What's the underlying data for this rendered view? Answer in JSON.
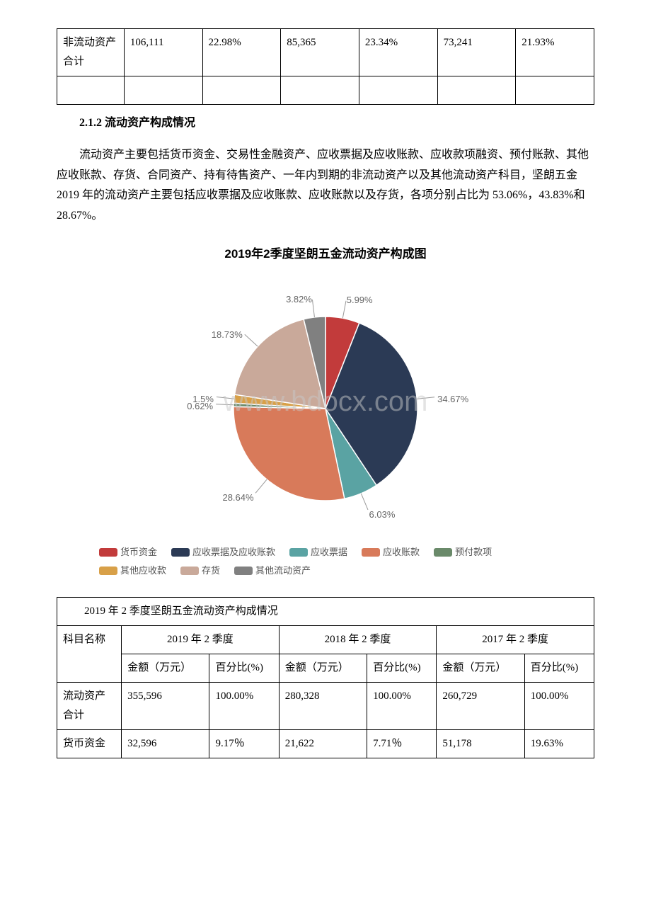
{
  "top_table": {
    "row": {
      "label": "非流动资产合计",
      "c1": "106,111",
      "c2": "22.98%",
      "c3": "85,365",
      "c4": "23.34%",
      "c5": "73,241",
      "c6": "21.93%"
    }
  },
  "section": {
    "heading": "2.1.2 流动资产构成情况",
    "para": "流动资产主要包括货币资金、交易性金融资产、应收票据及应收账款、应收款项融资、预付账款、其他应收账款、存货、合同资产、持有待售资产、一年内到期的非流动资产以及其他流动资产科目，坚朗五金 2019 年的流动资产主要包括应收票据及应收账款、应收账款以及存货，各项分别占比为 53.06%，43.83%和 28.67%。"
  },
  "chart": {
    "title": "2019年2季度坚朗五金流动资产构成图",
    "title_fontsize": 17,
    "background_color": "#ffffff",
    "label_color": "#808080",
    "label_fontsize": 13,
    "type": "pie",
    "slices": [
      {
        "label": "货币资金",
        "pct": 5.99,
        "color": "#c23b3b",
        "labelText": "5.99%"
      },
      {
        "label": "应收票据及应收账款",
        "pct": 34.67,
        "color": "#2b3a55",
        "labelText": "34.67%"
      },
      {
        "label": "应收票据",
        "pct": 6.03,
        "color": "#5aa3a3",
        "labelText": "6.03%"
      },
      {
        "label": "应收账款",
        "pct": 28.64,
        "color": "#d87a5a",
        "labelText": "28.64%"
      },
      {
        "label": "预付款项",
        "pct": 0.62,
        "color": "#6a8a6a",
        "labelText": "0.62%"
      },
      {
        "label": "其他应收款",
        "pct": 1.5,
        "color": "#d8a048",
        "labelText": "1.5%"
      },
      {
        "label": "存货",
        "pct": 18.73,
        "color": "#c9a99a",
        "labelText": "18.73%"
      },
      {
        "label": "其他流动资产",
        "pct": 3.82,
        "color": "#808080",
        "labelText": "3.82%"
      }
    ],
    "watermark": "www.bdocx.com"
  },
  "bottom_table": {
    "caption": "2019 年 2 季度坚朗五金流动资产构成情况",
    "periods": [
      "2019 年 2 季度",
      "2018 年 2 季度",
      "2017 年 2 季度"
    ],
    "col_label": "科目名称",
    "sub_headers": {
      "amount": "金额（万元）",
      "pct": "百分比(%)"
    },
    "rows": [
      {
        "label": "流动资产合计",
        "c1": "355,596",
        "c2": "100.00%",
        "c3": "280,328",
        "c4": "100.00%",
        "c5": "260,729",
        "c6": "100.00%"
      },
      {
        "label": "货币资金",
        "c1": "32,596",
        "c2": "9.17％",
        "c3": "21,622",
        "c4": "7.71％",
        "c5": "51,178",
        "c6": "19.63%"
      }
    ]
  }
}
